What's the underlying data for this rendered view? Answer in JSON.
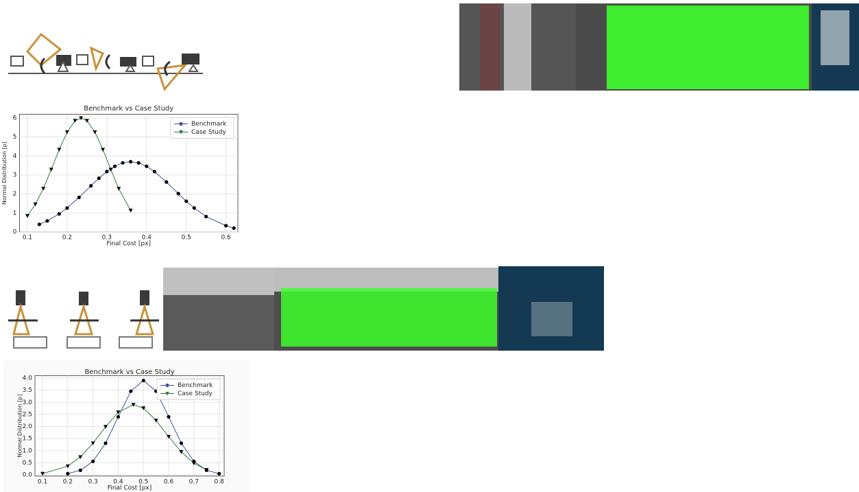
{
  "chart_data": [
    {
      "type": "line",
      "title": "Benchmark vs Case Study",
      "x_label": "Final Cost [px]",
      "y_label": "Normal Distribution [p]",
      "xlim": [
        0.08,
        0.63
      ],
      "xticks": [
        0.1,
        0.2,
        0.3,
        0.4,
        0.5,
        0.6
      ],
      "ylim": [
        0,
        6.2
      ],
      "yticks": [
        0,
        1,
        2,
        3,
        4,
        5,
        6
      ],
      "grid": true,
      "legend": "upper right",
      "series": [
        {
          "name": "Benchmark",
          "color": "#3b4fa0",
          "marker": "circle",
          "x": [
            0.13,
            0.15,
            0.18,
            0.2,
            0.23,
            0.26,
            0.28,
            0.3,
            0.32,
            0.34,
            0.36,
            0.38,
            0.4,
            0.42,
            0.45,
            0.48,
            0.5,
            0.52,
            0.55,
            0.6,
            0.62
          ],
          "values": [
            0.4,
            0.58,
            0.95,
            1.26,
            1.82,
            2.43,
            2.83,
            3.18,
            3.46,
            3.64,
            3.7,
            3.64,
            3.46,
            3.18,
            2.63,
            2.02,
            1.62,
            1.26,
            0.81,
            0.33,
            0.2
          ]
        },
        {
          "name": "Case Study",
          "color": "#2e7d3a",
          "marker": "triangle-down",
          "x": [
            0.1,
            0.12,
            0.14,
            0.16,
            0.18,
            0.2,
            0.22,
            0.235,
            0.25,
            0.27,
            0.29,
            0.31,
            0.33,
            0.36
          ],
          "values": [
            0.85,
            1.46,
            2.28,
            3.29,
            4.34,
            5.26,
            5.86,
            6,
            5.86,
            5.26,
            4.34,
            3.29,
            2.28,
            1.13
          ]
        }
      ]
    },
    {
      "type": "line",
      "title": "Benchmark vs Case Study",
      "x_label": "Final Cost [px]",
      "y_label": "Normal Distribution [p]",
      "xlim": [
        0.07,
        0.82
      ],
      "xticks": [
        0.1,
        0.2,
        0.3,
        0.4,
        0.5,
        0.6,
        0.7,
        0.8
      ],
      "ylim": [
        -0.05,
        4.1
      ],
      "yticks": [
        {
          "value": 0,
          "label": "0.0"
        },
        0.5,
        {
          "value": 1,
          "label": "1.0"
        },
        1.5,
        {
          "value": 2,
          "label": "2.0"
        },
        2.5,
        {
          "value": 3,
          "label": "3.0"
        },
        3.5,
        {
          "value": 4,
          "label": "4.0"
        }
      ],
      "grid": true,
      "legend": "upper right",
      "series": [
        {
          "name": "Benchmark",
          "color": "#3b4fa0",
          "marker": "circle",
          "x": [
            0.2,
            0.25,
            0.3,
            0.35,
            0.4,
            0.45,
            0.5,
            0.55,
            0.6,
            0.65,
            0.7,
            0.75,
            0.8
          ],
          "values": [
            0.05,
            0.19,
            0.56,
            1.31,
            2.4,
            3.46,
            3.9,
            3.46,
            2.4,
            1.31,
            0.56,
            0.19,
            0.05
          ]
        },
        {
          "name": "Case Study",
          "color": "#2e7d3a",
          "marker": "triangle-down",
          "x": [
            0.1,
            0.2,
            0.25,
            0.3,
            0.35,
            0.4,
            0.46,
            0.5,
            0.55,
            0.6,
            0.65,
            0.7,
            0.75
          ],
          "values": [
            0.05,
            0.36,
            0.74,
            1.31,
            1.99,
            2.59,
            2.9,
            2.76,
            2.25,
            1.58,
            0.95,
            0.48,
            0.21
          ]
        }
      ]
    }
  ]
}
